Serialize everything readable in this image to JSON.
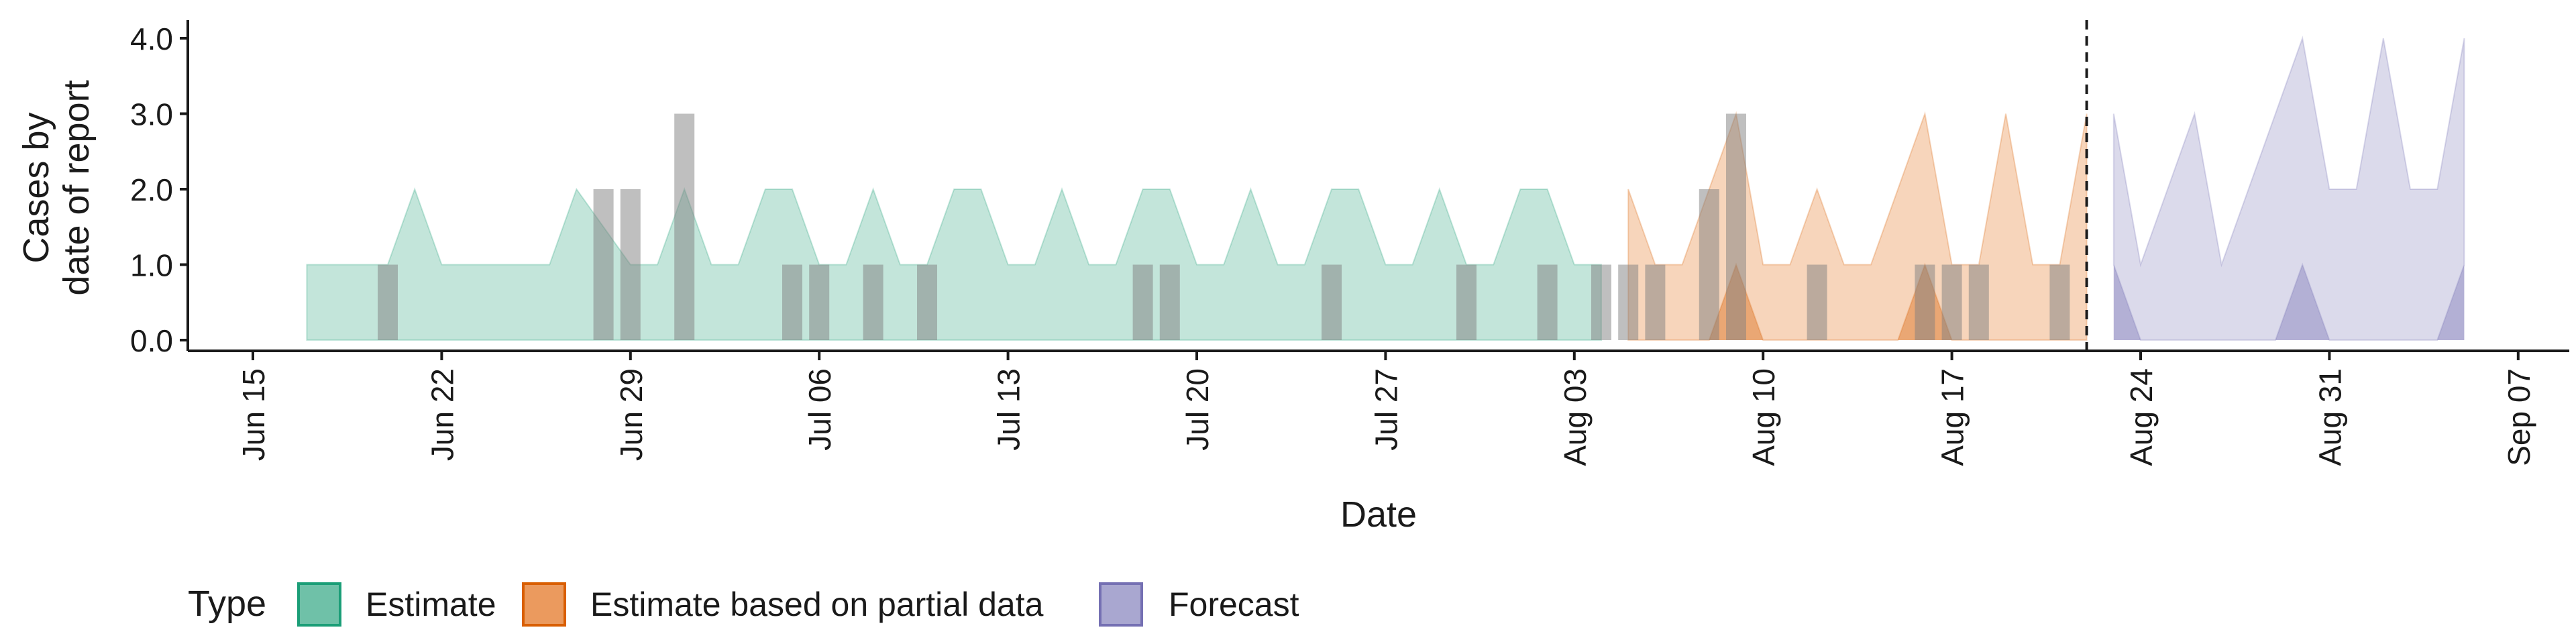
{
  "chart_data": {
    "type": "area",
    "xlabel": "Date",
    "ylabel_lines": [
      "Cases by",
      "date of report"
    ],
    "ylim": [
      0,
      4
    ],
    "yticks": [
      "0.0",
      "1.0",
      "2.0",
      "3.0",
      "4.0"
    ],
    "x_start": "2020-06-15",
    "x_end": "2020-09-07",
    "xticks": [
      {
        "date": "2020-06-15",
        "label": "Jun 15"
      },
      {
        "date": "2020-06-22",
        "label": "Jun 22"
      },
      {
        "date": "2020-06-29",
        "label": "Jun 29"
      },
      {
        "date": "2020-07-06",
        "label": "Jul 06"
      },
      {
        "date": "2020-07-13",
        "label": "Jul 13"
      },
      {
        "date": "2020-07-20",
        "label": "Jul 20"
      },
      {
        "date": "2020-07-27",
        "label": "Jul 27"
      },
      {
        "date": "2020-08-03",
        "label": "Aug 03"
      },
      {
        "date": "2020-08-10",
        "label": "Aug 10"
      },
      {
        "date": "2020-08-17",
        "label": "Aug 17"
      },
      {
        "date": "2020-08-24",
        "label": "Aug 24"
      },
      {
        "date": "2020-08-31",
        "label": "Aug 31"
      },
      {
        "date": "2020-09-07",
        "label": "Sep 07"
      }
    ],
    "forecast_cutoff_date": "2020-08-22",
    "legend": {
      "title": "Type",
      "position": "bottom-left",
      "entries": [
        {
          "label": "Estimate",
          "fill": "#6fc1a8",
          "stroke": "#1b9e77"
        },
        {
          "label": "Estimate based on partial data",
          "fill": "#eb9a5e",
          "stroke": "#d95f02"
        },
        {
          "label": "Forecast",
          "fill": "#a9a7d0",
          "stroke": "#7570b3"
        }
      ]
    },
    "series": [
      {
        "name": "Estimate",
        "color": "#1b9e77",
        "upper": [
          [
            "2020-06-17",
            1
          ],
          [
            "2020-06-20",
            1
          ],
          [
            "2020-06-21",
            2
          ],
          [
            "2020-06-22",
            1
          ],
          [
            "2020-06-26",
            1
          ],
          [
            "2020-06-27",
            2
          ],
          [
            "2020-06-29",
            1
          ],
          [
            "2020-06-30",
            1
          ],
          [
            "2020-07-01",
            2
          ],
          [
            "2020-07-02",
            1
          ],
          [
            "2020-07-03",
            1
          ],
          [
            "2020-07-04",
            2
          ],
          [
            "2020-07-05",
            2
          ],
          [
            "2020-07-06",
            1
          ],
          [
            "2020-07-07",
            1
          ],
          [
            "2020-07-08",
            2
          ],
          [
            "2020-07-09",
            1
          ],
          [
            "2020-07-10",
            1
          ],
          [
            "2020-07-11",
            2
          ],
          [
            "2020-07-12",
            2
          ],
          [
            "2020-07-13",
            1
          ],
          [
            "2020-07-14",
            1
          ],
          [
            "2020-07-15",
            2
          ],
          [
            "2020-07-16",
            1
          ],
          [
            "2020-07-17",
            1
          ],
          [
            "2020-07-18",
            2
          ],
          [
            "2020-07-19",
            2
          ],
          [
            "2020-07-20",
            1
          ],
          [
            "2020-07-21",
            1
          ],
          [
            "2020-07-22",
            2
          ],
          [
            "2020-07-23",
            1
          ],
          [
            "2020-07-24",
            1
          ],
          [
            "2020-07-25",
            2
          ],
          [
            "2020-07-26",
            2
          ],
          [
            "2020-07-27",
            1
          ],
          [
            "2020-07-28",
            1
          ],
          [
            "2020-07-29",
            2
          ],
          [
            "2020-07-30",
            1
          ],
          [
            "2020-07-31",
            1
          ],
          [
            "2020-08-01",
            2
          ],
          [
            "2020-08-02",
            2
          ],
          [
            "2020-08-03",
            1
          ],
          [
            "2020-08-04",
            1
          ]
        ],
        "lower": [
          [
            "2020-06-17",
            0
          ],
          [
            "2020-08-04",
            0
          ]
        ]
      },
      {
        "name": "Estimate based on partial data",
        "color": "#d95f02",
        "upper": [
          [
            "2020-08-05",
            2
          ],
          [
            "2020-08-06",
            1
          ],
          [
            "2020-08-07",
            1
          ],
          [
            "2020-08-08",
            2
          ],
          [
            "2020-08-09",
            3
          ],
          [
            "2020-08-10",
            1
          ],
          [
            "2020-08-11",
            1
          ],
          [
            "2020-08-12",
            2
          ],
          [
            "2020-08-13",
            1
          ],
          [
            "2020-08-14",
            1
          ],
          [
            "2020-08-15",
            2
          ],
          [
            "2020-08-16",
            3
          ],
          [
            "2020-08-17",
            1
          ],
          [
            "2020-08-18",
            1
          ],
          [
            "2020-08-19",
            3
          ],
          [
            "2020-08-20",
            1
          ],
          [
            "2020-08-21",
            1
          ],
          [
            "2020-08-22",
            3
          ]
        ],
        "lower": [
          [
            "2020-08-05",
            0
          ],
          [
            "2020-08-08",
            0
          ],
          [
            "2020-08-09",
            1
          ],
          [
            "2020-08-10",
            0
          ],
          [
            "2020-08-15",
            0
          ],
          [
            "2020-08-16",
            1
          ],
          [
            "2020-08-17",
            0
          ],
          [
            "2020-08-22",
            0
          ]
        ]
      },
      {
        "name": "Forecast",
        "color": "#7570b3",
        "upper": [
          [
            "2020-08-23",
            3
          ],
          [
            "2020-08-24",
            1
          ],
          [
            "2020-08-26",
            3
          ],
          [
            "2020-08-27",
            1
          ],
          [
            "2020-08-30",
            4
          ],
          [
            "2020-08-31",
            2
          ],
          [
            "2020-09-01",
            2
          ],
          [
            "2020-09-02",
            4
          ],
          [
            "2020-09-03",
            2
          ],
          [
            "2020-09-04",
            2
          ],
          [
            "2020-09-05",
            4
          ]
        ],
        "lower": [
          [
            "2020-08-23",
            1
          ],
          [
            "2020-08-24",
            0
          ],
          [
            "2020-08-29",
            0
          ],
          [
            "2020-08-30",
            1
          ],
          [
            "2020-08-31",
            0
          ],
          [
            "2020-09-04",
            0
          ],
          [
            "2020-09-05",
            1
          ]
        ]
      }
    ],
    "reported_cases": [
      [
        "2020-06-20",
        1
      ],
      [
        "2020-06-28",
        2
      ],
      [
        "2020-06-29",
        2
      ],
      [
        "2020-07-01",
        3
      ],
      [
        "2020-07-05",
        1
      ],
      [
        "2020-07-06",
        1
      ],
      [
        "2020-07-08",
        1
      ],
      [
        "2020-07-10",
        1
      ],
      [
        "2020-07-18",
        1
      ],
      [
        "2020-07-19",
        1
      ],
      [
        "2020-07-25",
        1
      ],
      [
        "2020-07-30",
        1
      ],
      [
        "2020-08-02",
        1
      ],
      [
        "2020-08-04",
        1
      ],
      [
        "2020-08-05",
        1
      ],
      [
        "2020-08-06",
        1
      ],
      [
        "2020-08-08",
        2
      ],
      [
        "2020-08-09",
        3
      ],
      [
        "2020-08-12",
        1
      ],
      [
        "2020-08-16",
        1
      ],
      [
        "2020-08-17",
        1
      ],
      [
        "2020-08-18",
        1
      ],
      [
        "2020-08-21",
        1
      ]
    ]
  }
}
